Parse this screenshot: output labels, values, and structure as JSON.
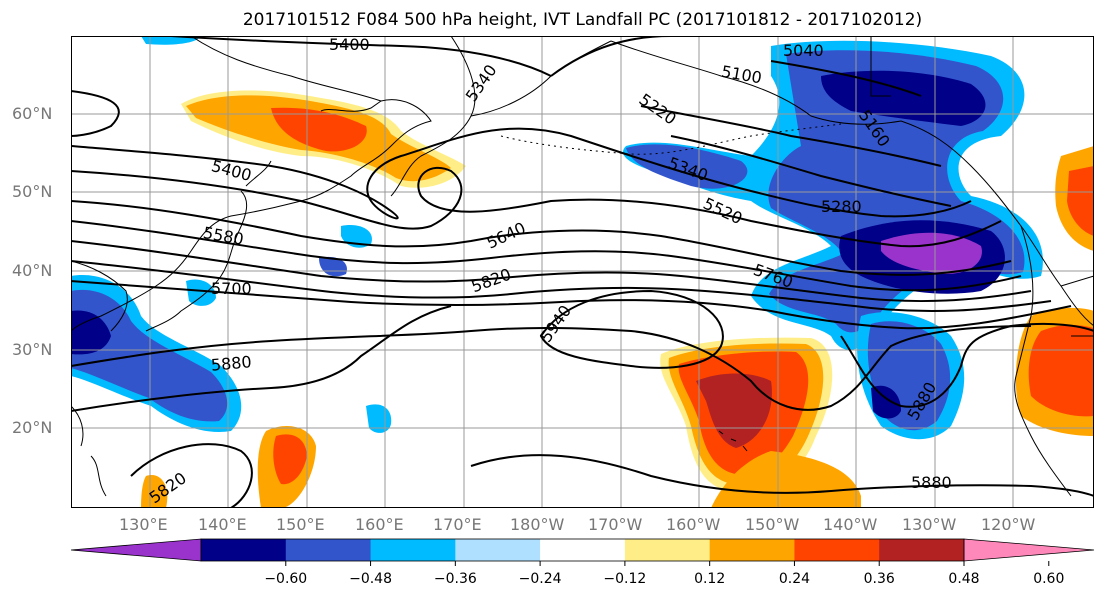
{
  "title": "2017101512 F084 500 hPa height, IVT Landfall PC (2017101812 - 2017102012)",
  "lat_labels": [
    "60°N",
    "50°N",
    "40°N",
    "30°N",
    "20°N"
  ],
  "lon_labels": [
    "130°E",
    "140°E",
    "150°E",
    "160°E",
    "170°E",
    "180°W",
    "170°W",
    "160°W",
    "150°W",
    "140°W",
    "130°W",
    "120°W"
  ],
  "contour_labels": [
    "5400",
    "5340",
    "5040",
    "5100",
    "5220",
    "5160",
    "5400",
    "5340",
    "5280",
    "5580",
    "5640",
    "5520",
    "5700",
    "5820",
    "5760",
    "5940",
    "5880",
    "5880",
    "5820",
    "5880"
  ],
  "colorbar": {
    "colors": [
      "#9933cc",
      "#000088",
      "#3355cc",
      "#00bbff",
      "#b0e0ff",
      "#ffffff",
      "#ffee88",
      "#ffa500",
      "#ff4400",
      "#b22222",
      "#ff88bb"
    ],
    "tick_labels": [
      "−0.60",
      "−0.48",
      "−0.36",
      "−0.24",
      "−0.12",
      "0.12",
      "0.24",
      "0.36",
      "0.48",
      "0.60"
    ]
  }
}
